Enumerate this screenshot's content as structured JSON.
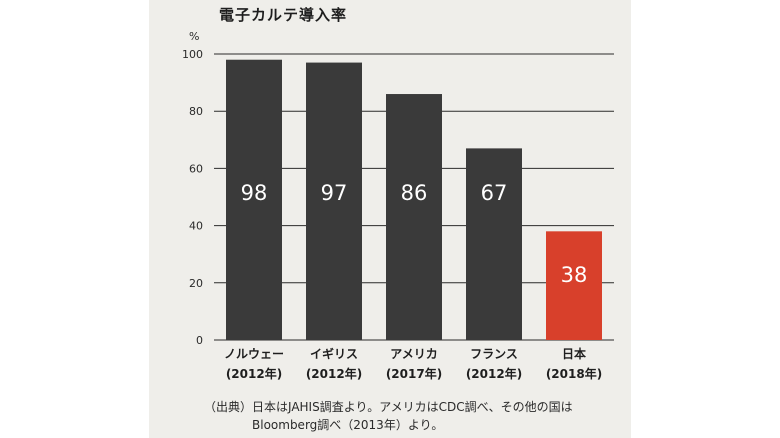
{
  "chart_data": {
    "type": "bar",
    "title": "電子カルテ導入率",
    "unit": "%",
    "categories": [
      {
        "name": "ノルウェー",
        "year": "(2012年)"
      },
      {
        "name": "イギリス",
        "year": "(2012年)"
      },
      {
        "name": "アメリカ",
        "year": "(2017年)"
      },
      {
        "name": "フランス",
        "year": "(2012年)"
      },
      {
        "name": "日本",
        "year": "(2018年)"
      }
    ],
    "values": [
      98,
      97,
      86,
      67,
      38
    ],
    "ylim": [
      0,
      100
    ],
    "yticks": [
      0,
      20,
      40,
      60,
      80,
      100
    ],
    "grid": true,
    "colors": {
      "bar": "#3a3a3a",
      "highlight": "#d8402b",
      "highlight_index": 4,
      "value_label": "#ffffff"
    }
  },
  "source": {
    "line1": "（出典）日本はJAHIS調査より。アメリカはCDC調べ、その他の国は",
    "line2": "Bloomberg調べ（2013年）より。"
  }
}
